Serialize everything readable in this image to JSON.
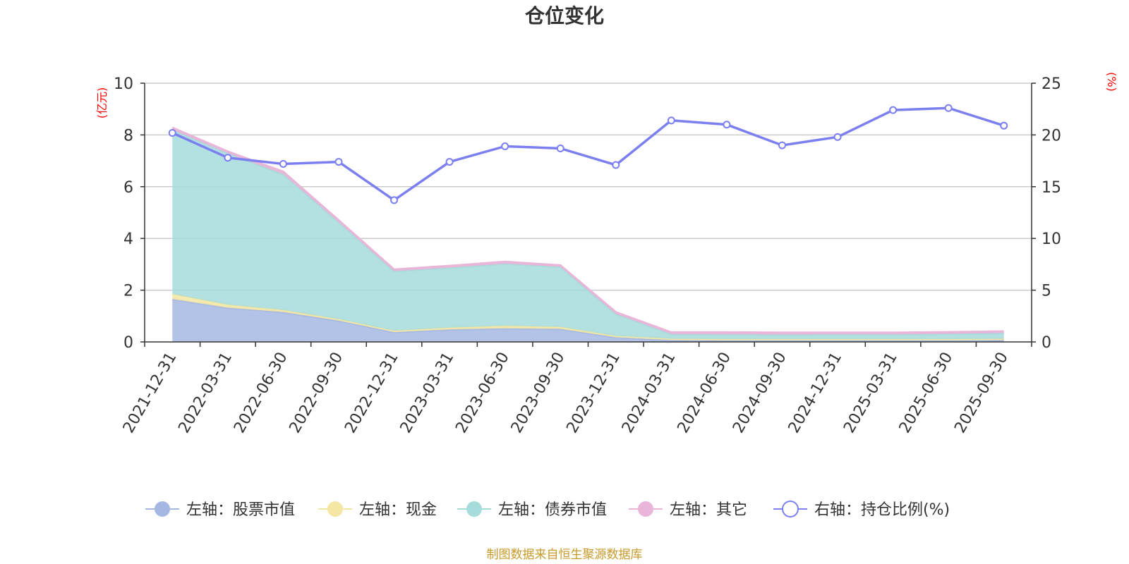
{
  "chart_data": {
    "type": "area",
    "title": "仓位变化",
    "x": [
      "2021-12-31",
      "2022-03-31",
      "2022-06-30",
      "2022-09-30",
      "2022-12-31",
      "2023-03-31",
      "2023-06-30",
      "2023-09-30",
      "2023-12-31",
      "2024-03-31",
      "2024-06-30",
      "2024-09-30",
      "2024-12-31",
      "2025-03-31",
      "2025-06-30",
      "2025-09-30"
    ],
    "left_axis": {
      "unit": "(亿元)",
      "ylim": [
        0,
        10
      ],
      "ticks": [
        "0",
        "2",
        "4",
        "6",
        "8",
        "10"
      ]
    },
    "right_axis": {
      "unit": "(%)",
      "ylim": [
        0,
        25
      ],
      "ticks": [
        "0",
        "5",
        "10",
        "15",
        "20",
        "25"
      ]
    },
    "series": [
      {
        "name": "左轴：股票市值",
        "axis": "left",
        "kind": "stacked-area",
        "color": "#a4b8e3",
        "values": [
          1.65,
          1.32,
          1.15,
          0.82,
          0.38,
          0.48,
          0.52,
          0.5,
          0.18,
          0.07,
          0.06,
          0.06,
          0.06,
          0.06,
          0.06,
          0.07
        ]
      },
      {
        "name": "左轴：现金",
        "axis": "left",
        "kind": "stacked-area",
        "color": "#f5e6a3",
        "values": [
          0.2,
          0.12,
          0.08,
          0.06,
          0.05,
          0.07,
          0.1,
          0.08,
          0.05,
          0.05,
          0.05,
          0.05,
          0.05,
          0.05,
          0.05,
          0.05
        ]
      },
      {
        "name": "左轴：债券市值",
        "axis": "left",
        "kind": "stacked-area",
        "color": "#a6dcdc",
        "values": [
          6.35,
          5.85,
          5.25,
          3.75,
          2.3,
          2.32,
          2.4,
          2.32,
          0.85,
          0.18,
          0.18,
          0.17,
          0.18,
          0.18,
          0.2,
          0.22
        ]
      },
      {
        "name": "左轴：其它",
        "axis": "left",
        "kind": "stacked-area",
        "color": "#e9b5d9",
        "values": [
          0.08,
          0.07,
          0.1,
          0.07,
          0.07,
          0.07,
          0.08,
          0.06,
          0.07,
          0.07,
          0.08,
          0.08,
          0.07,
          0.07,
          0.07,
          0.07
        ]
      },
      {
        "name": "右轴：持仓比例(%)",
        "axis": "right",
        "kind": "line",
        "color": "#7b7ff0",
        "values": [
          20.2,
          17.8,
          17.2,
          17.4,
          13.7,
          17.4,
          18.9,
          18.7,
          17.1,
          21.4,
          21.0,
          19.0,
          19.8,
          22.4,
          22.6,
          20.9
        ]
      }
    ],
    "grid": true,
    "legend_position": "bottom"
  },
  "footer": {
    "source": "制图数据来自恒生聚源数据库"
  }
}
